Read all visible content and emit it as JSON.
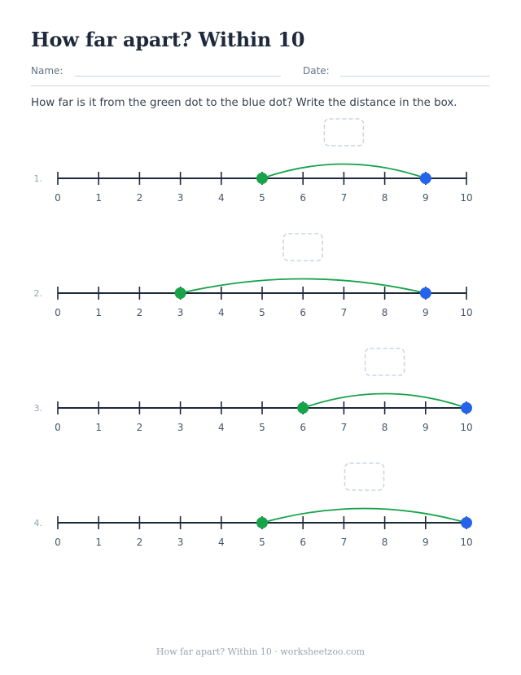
{
  "worksheet": {
    "title": "How far apart? Within 10",
    "name_label": "Name:",
    "date_label": "Date:",
    "instructions": "How far is it from the green dot to the blue dot? Write the distance in the box.",
    "footer": "How far apart? Within 10 · worksheetzoo.com"
  },
  "number_line": {
    "min": 0,
    "max": 10,
    "tick_labels": [
      "0",
      "1",
      "2",
      "3",
      "4",
      "5",
      "6",
      "7",
      "8",
      "9",
      "10"
    ]
  },
  "problems": [
    {
      "label": "1.",
      "start": 5,
      "end": 9
    },
    {
      "label": "2.",
      "start": 3,
      "end": 9
    },
    {
      "label": "3.",
      "start": 6,
      "end": 10
    },
    {
      "label": "4.",
      "start": 5,
      "end": 10
    }
  ],
  "colors": {
    "start_dot": "#16a34a",
    "end_dot": "#2563eb",
    "arc": "#16a34a",
    "line": "#1e293b",
    "answer_box": "#cbd5e1",
    "tick_label": "#475569",
    "problem_label": "#94a3b8"
  }
}
